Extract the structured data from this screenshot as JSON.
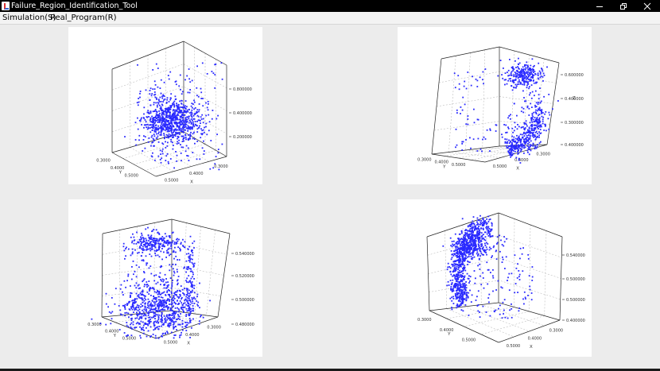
{
  "window": {
    "title": "Failure_Region_Identification_Tool",
    "icons": [
      "java-app-icon",
      "minimize-icon",
      "maximize-icon",
      "close-icon"
    ]
  },
  "menu": {
    "items": [
      {
        "label": "Simulation(S)"
      },
      {
        "label": "Real_Program(R)"
      }
    ]
  },
  "colors": {
    "points": "#2a2aff",
    "titlebar": "#000000",
    "panel": "#ffffff"
  },
  "plots": [
    {
      "ticks": {
        "z": [
          "0.800000",
          "0.400000",
          "0.200000"
        ],
        "y": [
          "0.3000",
          "0.4000",
          "0.5000"
        ],
        "x": [
          "0.5000",
          "0.4000",
          "0.3000"
        ],
        "xname": "X",
        "yname": "Y"
      }
    },
    {
      "ticks": {
        "z": [
          "0.600000",
          "0.400000",
          "0.300000",
          "0.400000"
        ],
        "y": [
          "0.3000",
          "0.4000",
          "0.5000"
        ],
        "x": [
          "0.5000",
          "0.4000",
          "0.3000"
        ],
        "xname": "X",
        "yname": "Y",
        "zname": "Z"
      }
    },
    {
      "ticks": {
        "z": [
          "0.540000",
          "0.520000",
          "0.500000",
          "0.480000"
        ],
        "y": [
          "0.3000",
          "0.4000",
          "0.5000"
        ],
        "x": [
          "0.5000",
          "0.4000",
          "0.3000"
        ],
        "xname": "X",
        "yname": "Y"
      }
    },
    {
      "ticks": {
        "z": [
          "0.540000",
          "0.500000",
          "0.500000",
          "0.400000"
        ],
        "y": [
          "0.3000",
          "0.4000",
          "0.5000"
        ],
        "x": [
          "0.5000",
          "0.4000",
          "0.3000"
        ],
        "xname": "X",
        "yname": "Y"
      }
    }
  ]
}
